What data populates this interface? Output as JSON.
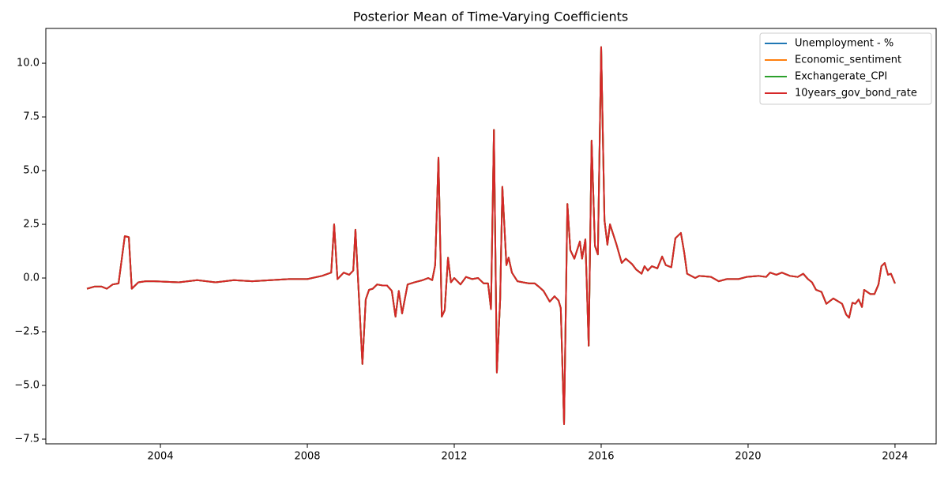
{
  "chart_data": {
    "type": "line",
    "title": "Posterior Mean of Time-Varying Coefficients",
    "x": [
      2002.0,
      2002.2,
      2002.4,
      2002.54,
      2002.7,
      2002.86,
      2003.03,
      2003.14,
      2003.22,
      2003.4,
      2003.6,
      2003.83,
      2004.5,
      2005.0,
      2005.5,
      2006.0,
      2006.5,
      2007.0,
      2007.5,
      2008.0,
      2008.4,
      2008.65,
      2008.73,
      2008.82,
      2008.99,
      2009.14,
      2009.25,
      2009.31,
      2009.5,
      2009.59,
      2009.68,
      2009.78,
      2009.9,
      2010.06,
      2010.17,
      2010.3,
      2010.4,
      2010.49,
      2010.58,
      2010.73,
      2010.92,
      2011.14,
      2011.29,
      2011.4,
      2011.48,
      2011.57,
      2011.66,
      2011.74,
      2011.83,
      2011.91,
      2012.0,
      2012.17,
      2012.32,
      2012.49,
      2012.65,
      2012.8,
      2012.92,
      2013.0,
      2013.08,
      2013.16,
      2013.25,
      2013.31,
      2013.42,
      2013.48,
      2013.57,
      2013.72,
      2013.87,
      2014.04,
      2014.19,
      2014.3,
      2014.43,
      2014.6,
      2014.73,
      2014.84,
      2014.9,
      2014.99,
      2015.08,
      2015.16,
      2015.27,
      2015.42,
      2015.48,
      2015.57,
      2015.66,
      2015.74,
      2015.83,
      2015.91,
      2016.0,
      2016.09,
      2016.17,
      2016.24,
      2016.41,
      2016.56,
      2016.67,
      2016.84,
      2016.95,
      2017.1,
      2017.18,
      2017.27,
      2017.38,
      2017.53,
      2017.66,
      2017.76,
      2017.91,
      2018.02,
      2018.17,
      2018.26,
      2018.34,
      2018.56,
      2018.67,
      2018.99,
      2019.2,
      2019.42,
      2019.74,
      2019.96,
      2020.28,
      2020.49,
      2020.6,
      2020.77,
      2020.92,
      2021.14,
      2021.35,
      2021.5,
      2021.63,
      2021.74,
      2021.85,
      2022.0,
      2022.13,
      2022.32,
      2022.56,
      2022.67,
      2022.75,
      2022.84,
      2022.92,
      2023.01,
      2023.1,
      2023.16,
      2023.33,
      2023.44,
      2023.55,
      2023.63,
      2023.72,
      2023.81,
      2023.89,
      2024.0
    ],
    "series": [
      {
        "name": "Unemployment - %",
        "color": "#1f77b4",
        "values": [
          -0.5,
          -0.4,
          -0.4,
          -0.5,
          -0.3,
          -0.25,
          1.95,
          1.9,
          -0.5,
          -0.2,
          -0.15,
          -0.15,
          -0.2,
          -0.1,
          -0.2,
          -0.1,
          -0.15,
          -0.1,
          -0.05,
          -0.05,
          0.1,
          0.25,
          2.5,
          -0.05,
          0.25,
          0.15,
          0.35,
          2.25,
          -4.0,
          -1.0,
          -0.55,
          -0.5,
          -0.3,
          -0.35,
          -0.35,
          -0.6,
          -1.8,
          -0.6,
          -1.65,
          -0.3,
          -0.2,
          -0.1,
          0.0,
          -0.1,
          0.6,
          5.6,
          -1.8,
          -1.5,
          0.95,
          -0.2,
          0.0,
          -0.3,
          0.05,
          -0.05,
          0.0,
          -0.25,
          -0.25,
          -1.45,
          6.9,
          -4.4,
          -1.0,
          4.25,
          0.6,
          0.95,
          0.25,
          -0.15,
          -0.2,
          -0.25,
          -0.25,
          -0.4,
          -0.6,
          -1.1,
          -0.85,
          -1.05,
          -1.4,
          -6.8,
          3.45,
          1.3,
          0.9,
          1.7,
          0.9,
          1.8,
          -3.15,
          6.4,
          1.5,
          1.1,
          10.75,
          2.7,
          1.55,
          2.5,
          1.6,
          0.7,
          0.9,
          0.65,
          0.4,
          0.2,
          0.55,
          0.35,
          0.55,
          0.45,
          1.0,
          0.6,
          0.5,
          1.85,
          2.1,
          1.2,
          0.2,
          0.0,
          0.1,
          0.05,
          -0.15,
          -0.05,
          -0.05,
          0.05,
          0.1,
          0.05,
          0.25,
          0.15,
          0.25,
          0.1,
          0.05,
          0.2,
          -0.05,
          -0.2,
          -0.55,
          -0.65,
          -1.2,
          -0.95,
          -1.2,
          -1.7,
          -1.85,
          -1.15,
          -1.2,
          -1.0,
          -1.35,
          -0.55,
          -0.75,
          -0.75,
          -0.3,
          0.55,
          0.7,
          0.15,
          0.2,
          -0.25
        ]
      },
      {
        "name": "Economic_sentiment",
        "color": "#ff7f0e",
        "values": [
          -0.5,
          -0.4,
          -0.4,
          -0.5,
          -0.3,
          -0.25,
          1.95,
          1.9,
          -0.5,
          -0.2,
          -0.15,
          -0.15,
          -0.2,
          -0.1,
          -0.2,
          -0.1,
          -0.15,
          -0.1,
          -0.05,
          -0.05,
          0.1,
          0.25,
          2.5,
          -0.05,
          0.25,
          0.15,
          0.35,
          2.25,
          -4.0,
          -1.0,
          -0.55,
          -0.5,
          -0.3,
          -0.35,
          -0.35,
          -0.6,
          -1.8,
          -0.6,
          -1.65,
          -0.3,
          -0.2,
          -0.1,
          0.0,
          -0.1,
          0.6,
          5.6,
          -1.8,
          -1.5,
          0.95,
          -0.2,
          0.0,
          -0.3,
          0.05,
          -0.05,
          0.0,
          -0.25,
          -0.25,
          -1.45,
          6.9,
          -4.4,
          -1.0,
          4.25,
          0.6,
          0.95,
          0.25,
          -0.15,
          -0.2,
          -0.25,
          -0.25,
          -0.4,
          -0.6,
          -1.1,
          -0.85,
          -1.05,
          -1.4,
          -6.8,
          3.45,
          1.3,
          0.9,
          1.7,
          0.9,
          1.8,
          -3.15,
          6.4,
          1.5,
          1.1,
          10.75,
          2.7,
          1.55,
          2.5,
          1.6,
          0.7,
          0.9,
          0.65,
          0.4,
          0.2,
          0.55,
          0.35,
          0.55,
          0.45,
          1.0,
          0.6,
          0.5,
          1.85,
          2.1,
          1.2,
          0.2,
          0.0,
          0.1,
          0.05,
          -0.15,
          -0.05,
          -0.05,
          0.05,
          0.1,
          0.05,
          0.25,
          0.15,
          0.25,
          0.1,
          0.05,
          0.2,
          -0.05,
          -0.2,
          -0.55,
          -0.65,
          -1.2,
          -0.95,
          -1.2,
          -1.7,
          -1.85,
          -1.15,
          -1.2,
          -1.0,
          -1.35,
          -0.55,
          -0.75,
          -0.75,
          -0.3,
          0.55,
          0.7,
          0.15,
          0.2,
          -0.25
        ]
      },
      {
        "name": "Exchangerate_CPI",
        "color": "#2ca02c",
        "values": [
          -0.5,
          -0.4,
          -0.4,
          -0.5,
          -0.3,
          -0.25,
          1.95,
          1.9,
          -0.5,
          -0.2,
          -0.15,
          -0.15,
          -0.2,
          -0.1,
          -0.2,
          -0.1,
          -0.15,
          -0.1,
          -0.05,
          -0.05,
          0.1,
          0.25,
          2.5,
          -0.05,
          0.25,
          0.15,
          0.35,
          2.25,
          -4.0,
          -1.0,
          -0.55,
          -0.5,
          -0.3,
          -0.35,
          -0.35,
          -0.6,
          -1.8,
          -0.6,
          -1.65,
          -0.3,
          -0.2,
          -0.1,
          0.0,
          -0.1,
          0.6,
          5.6,
          -1.8,
          -1.5,
          0.95,
          -0.2,
          0.0,
          -0.3,
          0.05,
          -0.05,
          0.0,
          -0.25,
          -0.25,
          -1.45,
          6.9,
          -4.4,
          -1.0,
          4.25,
          0.6,
          0.95,
          0.25,
          -0.15,
          -0.2,
          -0.25,
          -0.25,
          -0.4,
          -0.6,
          -1.1,
          -0.85,
          -1.05,
          -1.4,
          -6.8,
          3.45,
          1.3,
          0.9,
          1.7,
          0.9,
          1.8,
          -3.15,
          6.4,
          1.5,
          1.1,
          10.75,
          2.7,
          1.55,
          2.5,
          1.6,
          0.7,
          0.9,
          0.65,
          0.4,
          0.2,
          0.55,
          0.35,
          0.55,
          0.45,
          1.0,
          0.6,
          0.5,
          1.85,
          2.1,
          1.2,
          0.2,
          0.0,
          0.1,
          0.05,
          -0.15,
          -0.05,
          -0.05,
          0.05,
          0.1,
          0.05,
          0.25,
          0.15,
          0.25,
          0.1,
          0.05,
          0.2,
          -0.05,
          -0.2,
          -0.55,
          -0.65,
          -1.2,
          -0.95,
          -1.2,
          -1.7,
          -1.85,
          -1.15,
          -1.2,
          -1.0,
          -1.35,
          -0.55,
          -0.75,
          -0.75,
          -0.3,
          0.55,
          0.7,
          0.15,
          0.2,
          -0.25
        ]
      },
      {
        "name": "10years_gov_bond_rate",
        "color": "#d62728",
        "values": [
          -0.5,
          -0.4,
          -0.4,
          -0.5,
          -0.3,
          -0.25,
          1.95,
          1.9,
          -0.5,
          -0.2,
          -0.15,
          -0.15,
          -0.2,
          -0.1,
          -0.2,
          -0.1,
          -0.15,
          -0.1,
          -0.05,
          -0.05,
          0.1,
          0.25,
          2.5,
          -0.05,
          0.25,
          0.15,
          0.35,
          2.25,
          -4.0,
          -1.0,
          -0.55,
          -0.5,
          -0.3,
          -0.35,
          -0.35,
          -0.6,
          -1.8,
          -0.6,
          -1.65,
          -0.3,
          -0.2,
          -0.1,
          0.0,
          -0.1,
          0.6,
          5.6,
          -1.8,
          -1.5,
          0.95,
          -0.2,
          0.0,
          -0.3,
          0.05,
          -0.05,
          0.0,
          -0.25,
          -0.25,
          -1.45,
          6.9,
          -4.4,
          -1.0,
          4.25,
          0.6,
          0.95,
          0.25,
          -0.15,
          -0.2,
          -0.25,
          -0.25,
          -0.4,
          -0.6,
          -1.1,
          -0.85,
          -1.05,
          -1.4,
          -6.8,
          3.45,
          1.3,
          0.9,
          1.7,
          0.9,
          1.8,
          -3.15,
          6.4,
          1.5,
          1.1,
          10.75,
          2.7,
          1.55,
          2.5,
          1.6,
          0.7,
          0.9,
          0.65,
          0.4,
          0.2,
          0.55,
          0.35,
          0.55,
          0.45,
          1.0,
          0.6,
          0.5,
          1.85,
          2.1,
          1.2,
          0.2,
          0.0,
          0.1,
          0.05,
          -0.15,
          -0.05,
          -0.05,
          0.05,
          0.1,
          0.05,
          0.25,
          0.15,
          0.25,
          0.1,
          0.05,
          0.2,
          -0.05,
          -0.2,
          -0.55,
          -0.65,
          -1.2,
          -0.95,
          -1.2,
          -1.7,
          -1.85,
          -1.15,
          -1.2,
          -1.0,
          -1.35,
          -0.55,
          -0.75,
          -0.75,
          -0.3,
          0.55,
          0.7,
          0.15,
          0.2,
          -0.25
        ]
      }
    ],
    "xlim": [
      2000.88,
      2025.12
    ],
    "xticks": [
      2004,
      2008,
      2012,
      2016,
      2020,
      2024
    ],
    "ylim": [
      -7.72,
      11.62
    ],
    "yticks": [
      {
        "value": -7.5,
        "label": "−7.5"
      },
      {
        "value": -5,
        "label": "−5.0"
      },
      {
        "value": -2.5,
        "label": "−2.5"
      },
      {
        "value": 0,
        "label": "0.0"
      },
      {
        "value": 2.5,
        "label": "2.5"
      },
      {
        "value": 5,
        "label": "5.0"
      },
      {
        "value": 7.5,
        "label": "7.5"
      },
      {
        "value": 10,
        "label": "10.0"
      }
    ],
    "grid": false,
    "legend": "upper right"
  }
}
